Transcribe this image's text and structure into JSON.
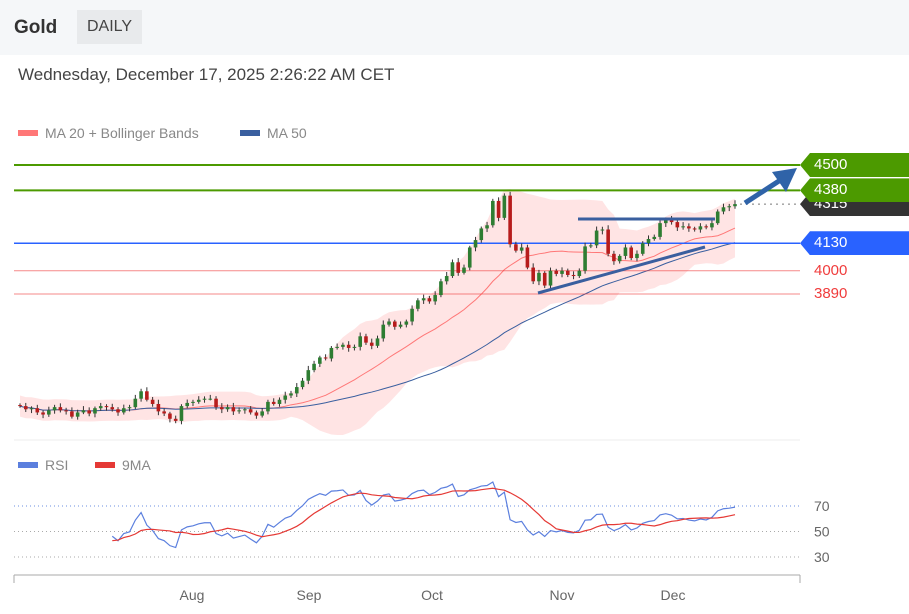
{
  "header": {
    "title": "Gold",
    "timeframe": "DAILY",
    "datetime": "Wednesday, December 17, 2025 2:26:22 AM CET"
  },
  "legend": {
    "ma20": "MA 20 + Bollinger Bands",
    "ma50": "MA 50",
    "rsi": "RSI",
    "rsi_ma": "9MA"
  },
  "colors": {
    "up": "#2e7d32",
    "down": "#b71c1c",
    "ma20": "#f77",
    "ma50": "#3a5f9f",
    "band": "#fdd",
    "resistance": "#4c9a00",
    "support_blue": "#2962ff",
    "support_red": "#f03c3c",
    "current": "#333333",
    "rsi": "#5b7fde",
    "rsi_ma": "#e53935"
  },
  "chart_data": {
    "type": "candlestick",
    "instrument": "Gold",
    "interval": "daily",
    "x_tick_labels": [
      "Aug",
      "Sep",
      "Oct",
      "Nov",
      "Dec"
    ],
    "x_tick_index": [
      28,
      49,
      70,
      93,
      113
    ],
    "ylim": [
      3200,
      4560
    ],
    "closes": [
      3360,
      3345,
      3350,
      3330,
      3320,
      3340,
      3355,
      3340,
      3335,
      3310,
      3330,
      3340,
      3325,
      3350,
      3360,
      3355,
      3345,
      3330,
      3350,
      3355,
      3395,
      3430,
      3390,
      3370,
      3335,
      3325,
      3300,
      3290,
      3360,
      3375,
      3380,
      3390,
      3395,
      3395,
      3355,
      3345,
      3355,
      3335,
      3340,
      3345,
      3330,
      3315,
      3335,
      3380,
      3370,
      3390,
      3410,
      3420,
      3450,
      3480,
      3530,
      3560,
      3590,
      3585,
      3635,
      3640,
      3650,
      3635,
      3640,
      3690,
      3660,
      3645,
      3680,
      3745,
      3760,
      3735,
      3745,
      3760,
      3820,
      3860,
      3870,
      3855,
      3885,
      3950,
      3975,
      4040,
      3990,
      4015,
      4110,
      4145,
      4200,
      4215,
      4330,
      4250,
      4355,
      4125,
      4095,
      4110,
      4015,
      3950,
      3990,
      3930,
      4000,
      3985,
      4000,
      3980,
      3975,
      4000,
      4115,
      4120,
      4190,
      4195,
      4080,
      4045,
      4070,
      4110,
      4060,
      4080,
      4130,
      4150,
      4160,
      4225,
      4240,
      4230,
      4205,
      4210,
      4200,
      4195,
      4210,
      4205,
      4225,
      4280,
      4300,
      4305,
      4315
    ],
    "levels": [
      {
        "value": 4500,
        "label": "4500",
        "kind": "resistance"
      },
      {
        "value": 4380,
        "label": "4380",
        "kind": "resistance"
      },
      {
        "value": 4315,
        "label": "4315",
        "kind": "current"
      },
      {
        "value": 4130,
        "label": "4130",
        "kind": "support_blue"
      },
      {
        "value": 4000,
        "label": "4000",
        "kind": "support_red"
      },
      {
        "value": 3890,
        "label": "3890",
        "kind": "support_red"
      }
    ],
    "rsi_panel": {
      "ticks": [
        "70",
        "50",
        "30"
      ],
      "tick_values": [
        70,
        50,
        30
      ],
      "period": 14,
      "ma_period": 9
    }
  }
}
